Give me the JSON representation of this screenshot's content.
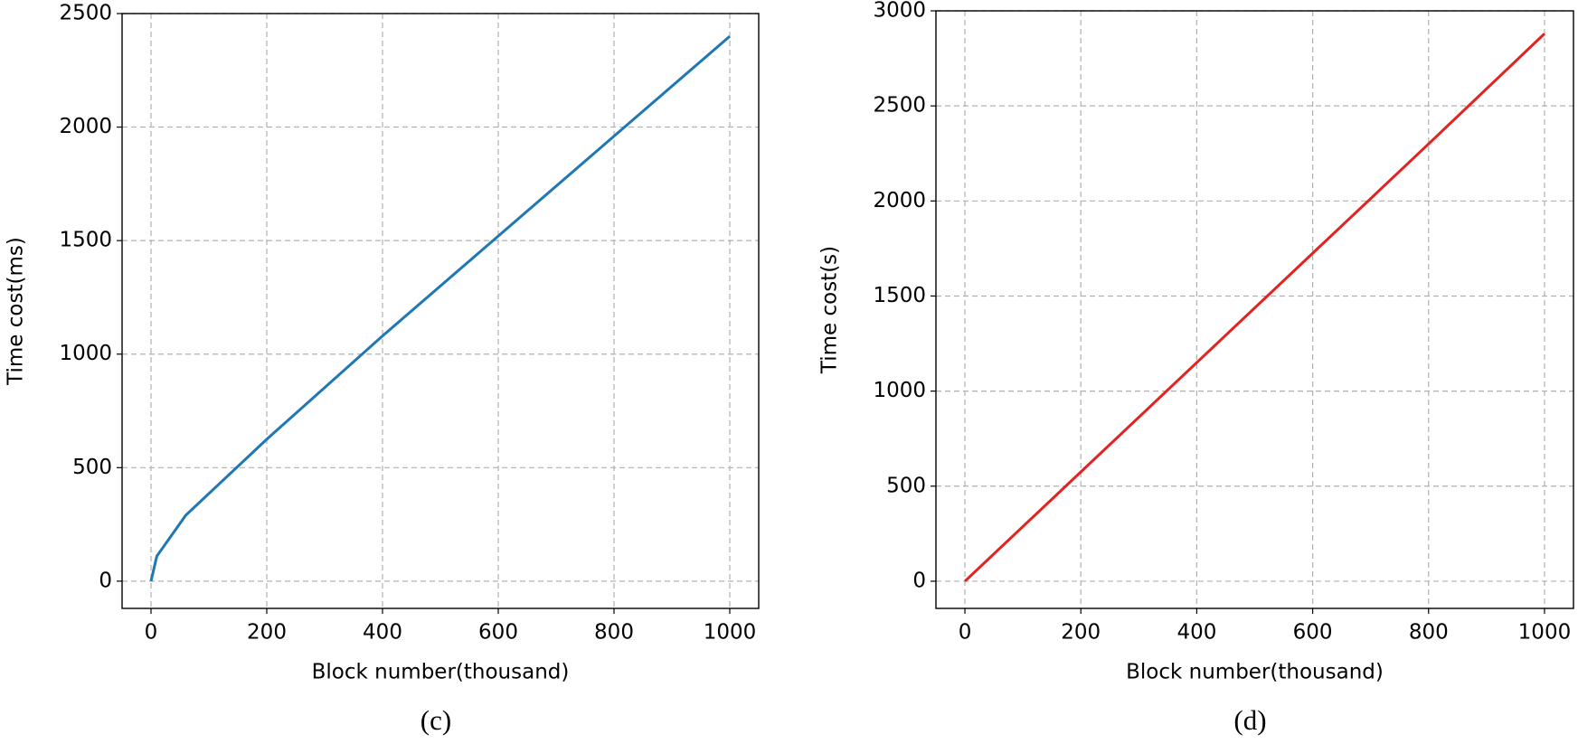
{
  "chart_data": [
    {
      "type": "line",
      "caption": "(c)",
      "x_label": "Block number(thousand)",
      "y_label": "Time cost(ms)",
      "x": [
        0,
        10,
        60,
        200,
        400,
        600,
        800,
        1000
      ],
      "series": [
        {
          "name": "Time cost(ms)",
          "color": "#1f77b4",
          "values": [
            0,
            110,
            290,
            625,
            1080,
            1520,
            1960,
            2400
          ]
        }
      ],
      "xlim": [
        -50,
        1050
      ],
      "ylim": [
        -120,
        2500
      ],
      "xticks": [
        0,
        200,
        400,
        600,
        800,
        1000
      ],
      "yticks": [
        0,
        500,
        1000,
        1500,
        2000,
        2500
      ],
      "grid": true
    },
    {
      "type": "line",
      "caption": "(d)",
      "x_label": "Block number(thousand)",
      "y_label": "Time cost(s)",
      "x": [
        0,
        200,
        400,
        600,
        800,
        1000
      ],
      "series": [
        {
          "name": "Time cost(s)",
          "color": "#e3231f",
          "values": [
            0,
            575,
            1150,
            1725,
            2300,
            2880
          ]
        }
      ],
      "xlim": [
        -50,
        1050
      ],
      "ylim": [
        -143,
        3000
      ],
      "xticks": [
        0,
        200,
        400,
        600,
        800,
        1000
      ],
      "yticks": [
        0,
        500,
        1000,
        1500,
        2000,
        2500,
        3000
      ],
      "grid": true
    }
  ]
}
